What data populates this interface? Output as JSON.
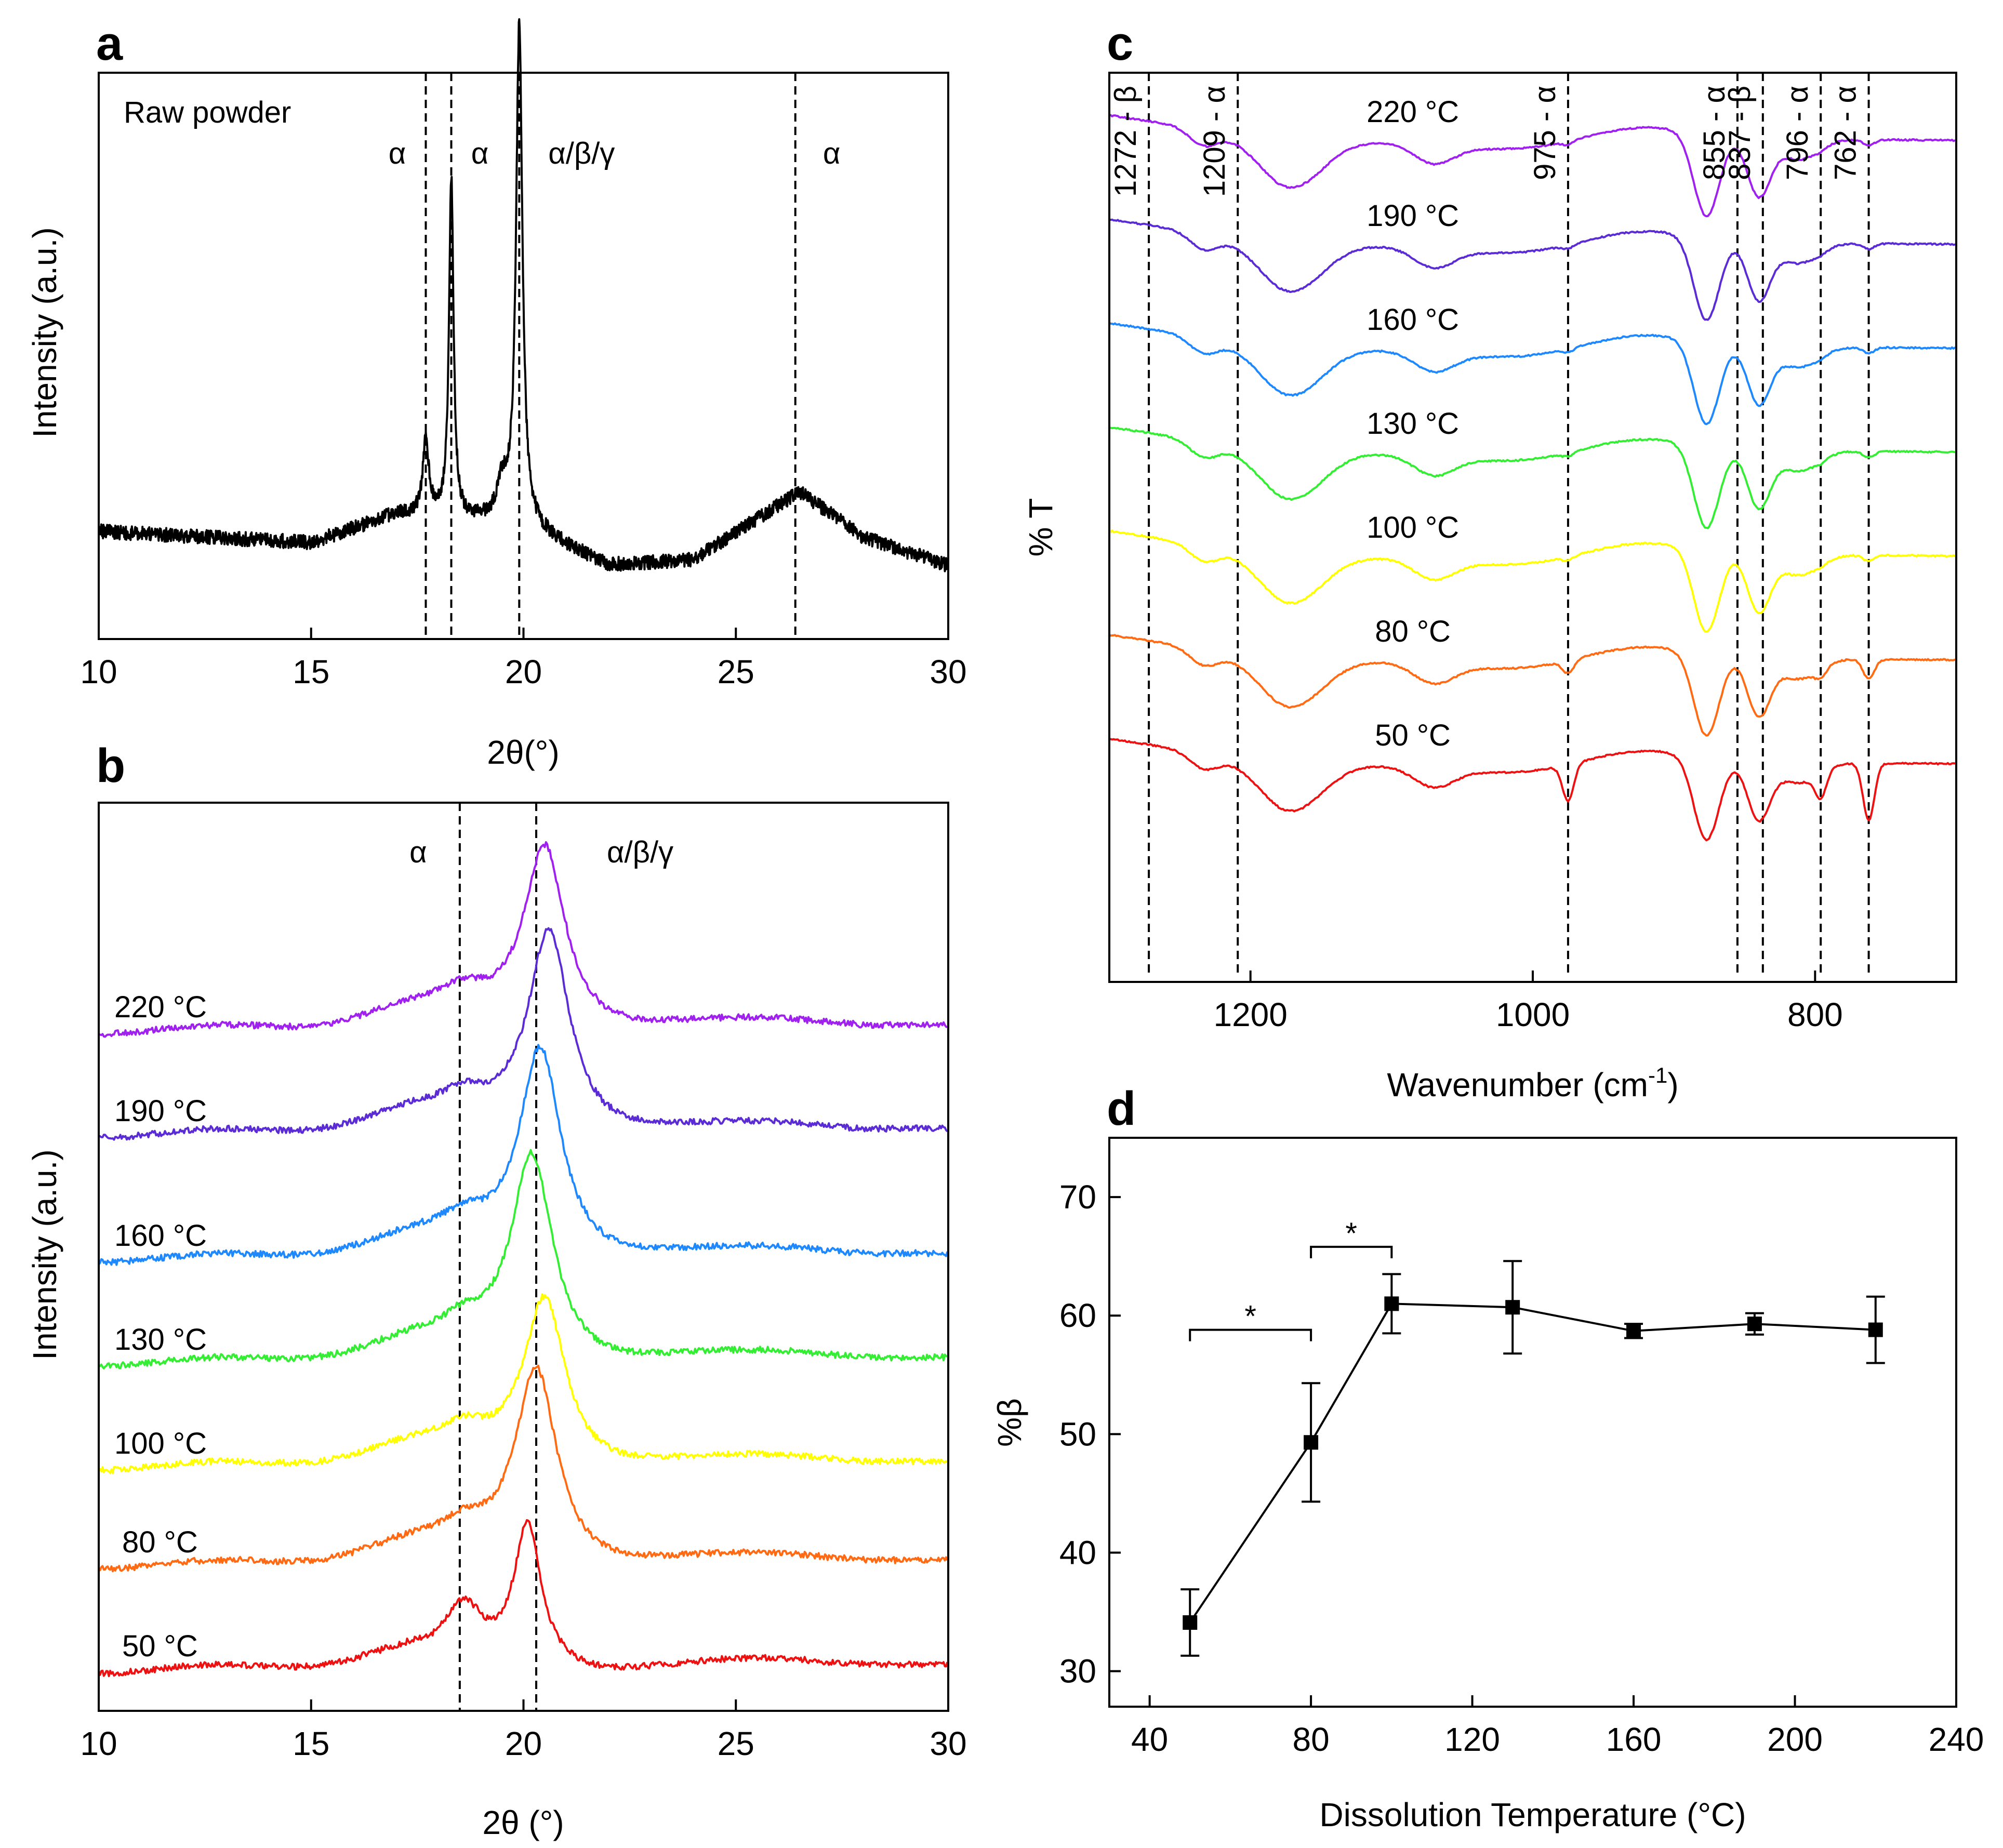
{
  "panels": {
    "a": {
      "letter": "a",
      "sample_label": "Raw powder",
      "ylabel": "Intensity (a.u.)",
      "xlabel": "2θ(°)"
    },
    "b": {
      "letter": "b",
      "ylabel": "Intensity (a.u.)",
      "xlabel": "2θ (°)"
    },
    "c": {
      "letter": "c",
      "ylabel": "% T",
      "xlabel_main": "Wavenumber (cm",
      "xlabel_sup": "-1",
      "xlabel_close": ")"
    },
    "d": {
      "letter": "d",
      "ylabel": "%β",
      "xlabel": "Dissolution Temperature (°C)"
    }
  },
  "chart_data": [
    {
      "panel": "a",
      "type": "line",
      "title": "Raw powder",
      "xlabel": "2θ(°)",
      "ylabel": "Intensity (a.u.)",
      "xlim": [
        10,
        30
      ],
      "ylim": [
        0,
        1
      ],
      "xticks": [
        10,
        15,
        20,
        25,
        30
      ],
      "series": [
        {
          "name": "Raw powder",
          "color": "#000000",
          "baseline": [
            [
              10,
              0.19
            ],
            [
              15,
              0.17
            ],
            [
              17,
              0.22
            ],
            [
              20,
              0.2
            ],
            [
              22,
              0.13
            ],
            [
              24,
              0.14
            ],
            [
              26.5,
              0.26
            ],
            [
              28,
              0.18
            ],
            [
              30,
              0.13
            ]
          ],
          "peaks": [
            [
              17.7,
              0.13,
              0.18
            ],
            [
              18.3,
              0.6,
              0.13
            ],
            [
              19.9,
              0.88,
              0.18
            ],
            [
              19.5,
              0.06,
              0.3
            ]
          ]
        }
      ],
      "reference_lines": [
        {
          "x": 17.7,
          "label": "α"
        },
        {
          "x": 18.3,
          "label": "α"
        },
        {
          "x": 19.9,
          "label": "α/β/γ"
        },
        {
          "x": 26.4,
          "label": "α"
        }
      ]
    },
    {
      "panel": "b",
      "type": "line",
      "xlabel": "2θ (°)",
      "ylabel": "Intensity (a.u.)",
      "xlim": [
        10,
        30
      ],
      "xticks": [
        10,
        15,
        20,
        25,
        30
      ],
      "reference_lines": [
        {
          "x": 18.5,
          "label": "α"
        },
        {
          "x": 20.3,
          "label": "α/β/γ"
        }
      ],
      "series": [
        {
          "name": "220 °C",
          "color": "#A020F0",
          "offset": 6.15,
          "peak_x": 20.5,
          "peak_h": 1.75,
          "width": 0.85
        },
        {
          "name": "190 °C",
          "color": "#5B2CD6",
          "offset": 5.15,
          "peak_x": 20.6,
          "peak_h": 1.95,
          "width": 0.85
        },
        {
          "name": "160 °C",
          "color": "#1E88FF",
          "offset": 3.95,
          "peak_x": 20.4,
          "peak_h": 2.0,
          "width": 0.85
        },
        {
          "name": "130 °C",
          "color": "#33EE33",
          "offset": 2.95,
          "peak_x": 20.2,
          "peak_h": 1.95,
          "width": 0.85
        },
        {
          "name": "100 °C",
          "color": "#FFFF00",
          "offset": 1.95,
          "peak_x": 20.5,
          "peak_h": 1.6,
          "width": 0.85
        },
        {
          "name": "80 °C",
          "color": "#FF6A13",
          "offset": 1.0,
          "peak_x": 20.3,
          "peak_h": 1.85,
          "width": 0.85
        },
        {
          "name": "50 °C",
          "color": "#EE1111",
          "offset": 0.0,
          "peak_x": 20.1,
          "peak_h": 1.35,
          "width": 0.55
        }
      ]
    },
    {
      "panel": "c",
      "type": "line",
      "xlabel": "Wavenumber (cm-1)",
      "ylabel": "% T",
      "xlim": [
        1300,
        700
      ],
      "xticks": [
        1200,
        1000,
        800
      ],
      "reference_lines": [
        {
          "x": 1272,
          "label": "1272 - β"
        },
        {
          "x": 1209,
          "label": "1209 - α"
        },
        {
          "x": 975,
          "label": "975 - α"
        },
        {
          "x": 855,
          "label": "855 - α"
        },
        {
          "x": 837,
          "label": "837 - β"
        },
        {
          "x": 796,
          "label": "796 - α"
        },
        {
          "x": 762,
          "label": "762 - α"
        }
      ],
      "series": [
        {
          "name": "220 °C",
          "color": "#A020F0",
          "offset": 6.0
        },
        {
          "name": "190 °C",
          "color": "#5B2CD6",
          "offset": 5.0
        },
        {
          "name": "160 °C",
          "color": "#1E88FF",
          "offset": 4.0
        },
        {
          "name": "130 °C",
          "color": "#33EE33",
          "offset": 3.0
        },
        {
          "name": "100 °C",
          "color": "#FFFF00",
          "offset": 2.0
        },
        {
          "name": "80 °C",
          "color": "#FF6A13",
          "offset": 1.0
        },
        {
          "name": "50 °C",
          "color": "#EE1111",
          "offset": 0.0
        }
      ]
    },
    {
      "panel": "d",
      "type": "line",
      "xlabel": "Dissolution Temperature (°C)",
      "ylabel": "%β",
      "xlim": [
        30,
        240
      ],
      "ylim": [
        27,
        75
      ],
      "xticks": [
        40,
        80,
        120,
        160,
        200,
        240
      ],
      "yticks": [
        30,
        40,
        50,
        60,
        70
      ],
      "x": [
        50,
        80,
        100,
        130,
        160,
        190,
        220
      ],
      "y": [
        34.1,
        49.3,
        61.0,
        60.7,
        58.7,
        59.3,
        58.8
      ],
      "yerr": [
        2.8,
        5.0,
        2.5,
        3.9,
        0.6,
        0.9,
        2.8
      ],
      "significance": [
        {
          "from": 50,
          "to": 80,
          "y": 58.8,
          "label": "*"
        },
        {
          "from": 80,
          "to": 100,
          "y": 65.8,
          "label": "*"
        }
      ]
    }
  ]
}
